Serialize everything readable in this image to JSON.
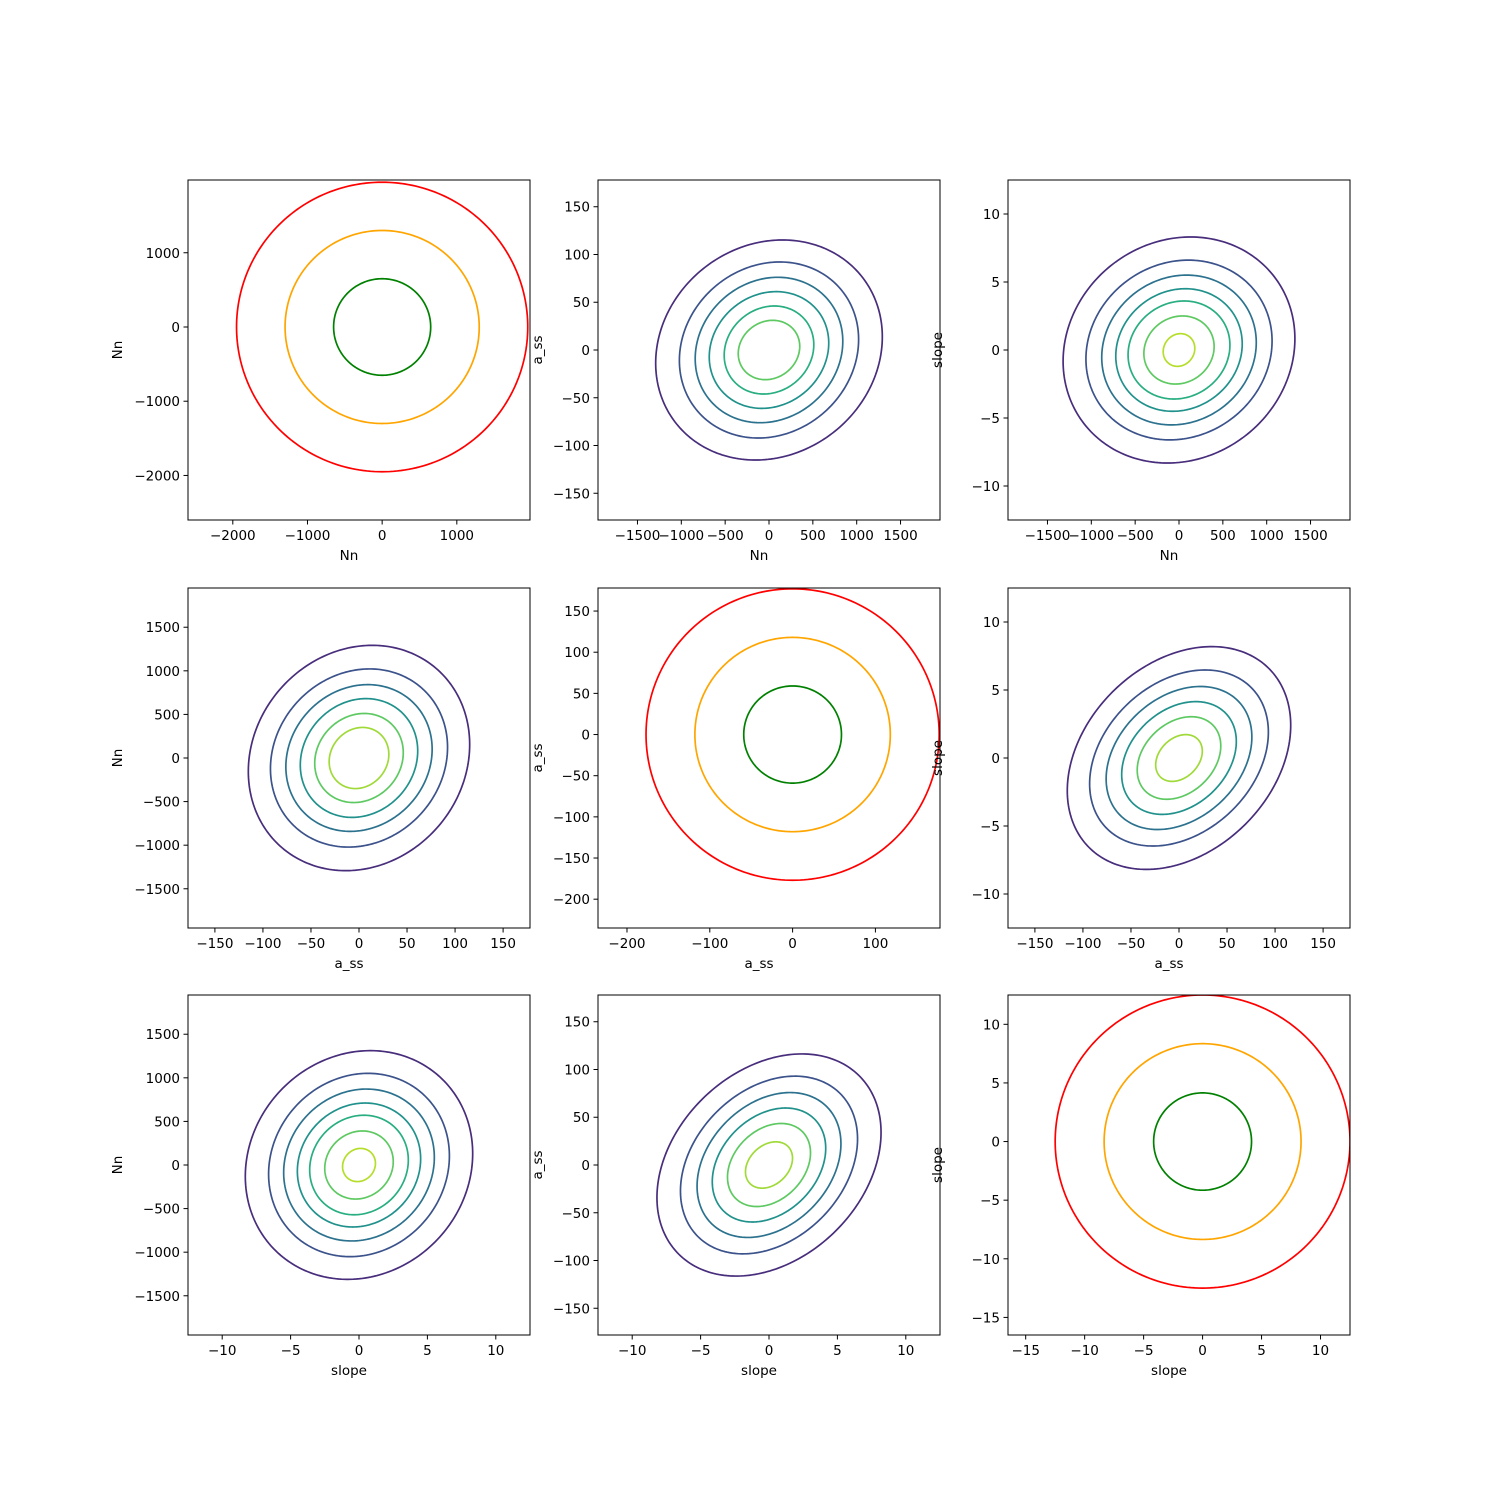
{
  "chart_data": [
    {
      "type": "contour",
      "panel": "1-1",
      "xlabel": "Nn",
      "ylabel": "Nn",
      "xlim": [
        -2600,
        1980
      ],
      "ylim": [
        -2600,
        1980
      ],
      "xticks": [
        -2000,
        -1000,
        0,
        1000
      ],
      "yticks": [
        -2000,
        -1000,
        0,
        1000
      ],
      "contours": [
        {
          "color": "#ff0000",
          "cx": 0,
          "cy": 0,
          "rx": 1950,
          "ry": 1950,
          "tilt": 0
        },
        {
          "color": "#ffa500",
          "cx": 0,
          "cy": 0,
          "rx": 1300,
          "ry": 1300,
          "tilt": 0
        },
        {
          "color": "#008000",
          "cx": 0,
          "cy": 0,
          "rx": 650,
          "ry": 650,
          "tilt": 0
        }
      ]
    },
    {
      "type": "contour",
      "panel": "1-2",
      "xlabel": "Nn",
      "ylabel": "a_ss",
      "xlim": [
        -1950,
        1950
      ],
      "ylim": [
        -178,
        178
      ],
      "xticks": [
        -1500,
        -1000,
        -500,
        0,
        500,
        1000,
        1500
      ],
      "yticks": [
        -150,
        -100,
        -50,
        0,
        50,
        100,
        150
      ],
      "contours": [
        {
          "color": "#472d7b",
          "cx": 0,
          "cy": 0,
          "rx": 1290,
          "ry": 115,
          "tilt": 0.12
        },
        {
          "color": "#3b528b",
          "cx": 0,
          "cy": 0,
          "rx": 1020,
          "ry": 92,
          "tilt": 0.12
        },
        {
          "color": "#2c728e",
          "cx": 0,
          "cy": 0,
          "rx": 840,
          "ry": 76,
          "tilt": 0.12
        },
        {
          "color": "#21918c",
          "cx": 0,
          "cy": 0,
          "rx": 680,
          "ry": 61,
          "tilt": 0.12
        },
        {
          "color": "#28ae80",
          "cx": 0,
          "cy": 0,
          "rx": 510,
          "ry": 46,
          "tilt": 0.12
        },
        {
          "color": "#5ec962",
          "cx": 0,
          "cy": 0,
          "rx": 350,
          "ry": 31,
          "tilt": 0.12
        }
      ]
    },
    {
      "type": "contour",
      "panel": "1-3",
      "xlabel": "Nn",
      "ylabel": "slope",
      "xlim": [
        -1950,
        1950
      ],
      "ylim": [
        -12.5,
        12.5
      ],
      "xticks": [
        -1500,
        -1000,
        -500,
        0,
        500,
        1000,
        1500
      ],
      "yticks": [
        -10,
        -5,
        0,
        5,
        10
      ],
      "contours": [
        {
          "color": "#472d7b",
          "cx": 0,
          "cy": 0,
          "rx": 1320,
          "ry": 8.3,
          "tilt": 0.1
        },
        {
          "color": "#3b528b",
          "cx": 0,
          "cy": 0,
          "rx": 1060,
          "ry": 6.6,
          "tilt": 0.1
        },
        {
          "color": "#2c728e",
          "cx": 0,
          "cy": 0,
          "rx": 880,
          "ry": 5.5,
          "tilt": 0.1
        },
        {
          "color": "#21918c",
          "cx": 0,
          "cy": 0,
          "rx": 720,
          "ry": 4.5,
          "tilt": 0.1
        },
        {
          "color": "#28ae80",
          "cx": 0,
          "cy": 0,
          "rx": 580,
          "ry": 3.6,
          "tilt": 0.1
        },
        {
          "color": "#5ec962",
          "cx": 0,
          "cy": 0,
          "rx": 400,
          "ry": 2.5,
          "tilt": 0.1
        },
        {
          "color": "#b5de2b",
          "cx": 0,
          "cy": 0,
          "rx": 180,
          "ry": 1.2,
          "tilt": 0.1
        }
      ]
    },
    {
      "type": "contour",
      "panel": "2-1",
      "xlabel": "a_ss",
      "ylabel": "Nn",
      "xlim": [
        -178,
        178
      ],
      "ylim": [
        -1950,
        1950
      ],
      "xticks": [
        -150,
        -100,
        -50,
        0,
        50,
        100,
        150
      ],
      "yticks": [
        -1500,
        -1000,
        -500,
        0,
        500,
        1000,
        1500
      ],
      "contours": [
        {
          "color": "#472d7b",
          "cx": 0,
          "cy": 0,
          "rx": 115,
          "ry": 1290,
          "tilt": 0.12
        },
        {
          "color": "#3b528b",
          "cx": 0,
          "cy": 0,
          "rx": 92,
          "ry": 1020,
          "tilt": 0.12
        },
        {
          "color": "#2c728e",
          "cx": 0,
          "cy": 0,
          "rx": 76,
          "ry": 840,
          "tilt": 0.12
        },
        {
          "color": "#21918c",
          "cx": 0,
          "cy": 0,
          "rx": 61,
          "ry": 680,
          "tilt": 0.12
        },
        {
          "color": "#5ec962",
          "cx": 0,
          "cy": 0,
          "rx": 46,
          "ry": 510,
          "tilt": 0.12
        },
        {
          "color": "#a0da39",
          "cx": 0,
          "cy": 0,
          "rx": 31,
          "ry": 350,
          "tilt": 0.12
        }
      ]
    },
    {
      "type": "contour",
      "panel": "2-2",
      "xlabel": "a_ss",
      "ylabel": "a_ss",
      "xlim": [
        -235,
        178
      ],
      "ylim": [
        -235,
        178
      ],
      "xticks": [
        -200,
        -100,
        0,
        100
      ],
      "yticks": [
        -200,
        -150,
        -100,
        -50,
        0,
        50,
        100,
        150
      ],
      "contours": [
        {
          "color": "#ff0000",
          "cx": 0,
          "cy": 0,
          "rx": 177,
          "ry": 177,
          "tilt": 0
        },
        {
          "color": "#ffa500",
          "cx": 0,
          "cy": 0,
          "rx": 118,
          "ry": 118,
          "tilt": 0
        },
        {
          "color": "#008000",
          "cx": 0,
          "cy": 0,
          "rx": 59,
          "ry": 59,
          "tilt": 0
        }
      ]
    },
    {
      "type": "contour",
      "panel": "2-3",
      "xlabel": "a_ss",
      "ylabel": "slope",
      "xlim": [
        -178,
        178
      ],
      "ylim": [
        -12.5,
        12.5
      ],
      "xticks": [
        -150,
        -100,
        -50,
        0,
        50,
        100,
        150
      ],
      "yticks": [
        -10,
        -5,
        0,
        5,
        10
      ],
      "contours": [
        {
          "color": "#472d7b",
          "cx": 0,
          "cy": 0,
          "rx": 115,
          "ry": 8.1,
          "tilt": 0.3
        },
        {
          "color": "#3b528b",
          "cx": 0,
          "cy": 0,
          "rx": 92,
          "ry": 6.4,
          "tilt": 0.3
        },
        {
          "color": "#2c728e",
          "cx": 0,
          "cy": 0,
          "rx": 75,
          "ry": 5.2,
          "tilt": 0.3
        },
        {
          "color": "#21918c",
          "cx": 0,
          "cy": 0,
          "rx": 59,
          "ry": 4.1,
          "tilt": 0.3
        },
        {
          "color": "#5ec962",
          "cx": 0,
          "cy": 0,
          "rx": 43,
          "ry": 3.0,
          "tilt": 0.3
        },
        {
          "color": "#a0da39",
          "cx": 0,
          "cy": 0,
          "rx": 24,
          "ry": 1.7,
          "tilt": 0.3
        }
      ]
    },
    {
      "type": "contour",
      "panel": "3-1",
      "xlabel": "slope",
      "ylabel": "Nn",
      "xlim": [
        -12.5,
        12.5
      ],
      "ylim": [
        -1950,
        1950
      ],
      "xticks": [
        -10,
        -5,
        0,
        5,
        10
      ],
      "yticks": [
        -1500,
        -1000,
        -500,
        0,
        500,
        1000,
        1500
      ],
      "contours": [
        {
          "color": "#472d7b",
          "cx": 0,
          "cy": 0,
          "rx": 8.3,
          "ry": 1310,
          "tilt": 0.1
        },
        {
          "color": "#3b528b",
          "cx": 0,
          "cy": 0,
          "rx": 6.6,
          "ry": 1050,
          "tilt": 0.1
        },
        {
          "color": "#2c728e",
          "cx": 0,
          "cy": 0,
          "rx": 5.5,
          "ry": 870,
          "tilt": 0.1
        },
        {
          "color": "#21918c",
          "cx": 0,
          "cy": 0,
          "rx": 4.5,
          "ry": 710,
          "tilt": 0.1
        },
        {
          "color": "#28ae80",
          "cx": 0,
          "cy": 0,
          "rx": 3.6,
          "ry": 570,
          "tilt": 0.1
        },
        {
          "color": "#5ec962",
          "cx": 0,
          "cy": 0,
          "rx": 2.5,
          "ry": 390,
          "tilt": 0.1
        },
        {
          "color": "#b5de2b",
          "cx": 0,
          "cy": 0,
          "rx": 1.2,
          "ry": 190,
          "tilt": 0.1
        }
      ]
    },
    {
      "type": "contour",
      "panel": "3-2",
      "xlabel": "slope",
      "ylabel": "a_ss",
      "xlim": [
        -12.5,
        12.5
      ],
      "ylim": [
        -178,
        178
      ],
      "xticks": [
        -10,
        -5,
        0,
        5,
        10
      ],
      "yticks": [
        -150,
        -100,
        -50,
        0,
        50,
        100,
        150
      ],
      "contours": [
        {
          "color": "#472d7b",
          "cx": 0,
          "cy": 0,
          "rx": 8.1,
          "ry": 115,
          "tilt": 0.3
        },
        {
          "color": "#3b528b",
          "cx": 0,
          "cy": 0,
          "rx": 6.4,
          "ry": 92,
          "tilt": 0.3
        },
        {
          "color": "#2c728e",
          "cx": 0,
          "cy": 0,
          "rx": 5.2,
          "ry": 75,
          "tilt": 0.3
        },
        {
          "color": "#21918c",
          "cx": 0,
          "cy": 0,
          "rx": 4.1,
          "ry": 59,
          "tilt": 0.3
        },
        {
          "color": "#5ec962",
          "cx": 0,
          "cy": 0,
          "rx": 3.0,
          "ry": 43,
          "tilt": 0.3
        },
        {
          "color": "#a0da39",
          "cx": 0,
          "cy": 0,
          "rx": 1.7,
          "ry": 24,
          "tilt": 0.3
        }
      ]
    },
    {
      "type": "contour",
      "panel": "3-3",
      "xlabel": "slope",
      "ylabel": "slope",
      "xlim": [
        -16.5,
        12.5
      ],
      "ylim": [
        -16.5,
        12.5
      ],
      "xticks": [
        -15,
        -10,
        -5,
        0,
        5,
        10
      ],
      "yticks": [
        -15,
        -10,
        -5,
        0,
        5,
        10
      ],
      "contours": [
        {
          "color": "#ff0000",
          "cx": 0,
          "cy": 0,
          "rx": 12.5,
          "ry": 12.5,
          "tilt": 0
        },
        {
          "color": "#ffa500",
          "cx": 0,
          "cy": 0,
          "rx": 8.35,
          "ry": 8.35,
          "tilt": 0
        },
        {
          "color": "#008000",
          "cx": 0,
          "cy": 0,
          "rx": 4.15,
          "ry": 4.15,
          "tilt": 0
        }
      ]
    }
  ]
}
